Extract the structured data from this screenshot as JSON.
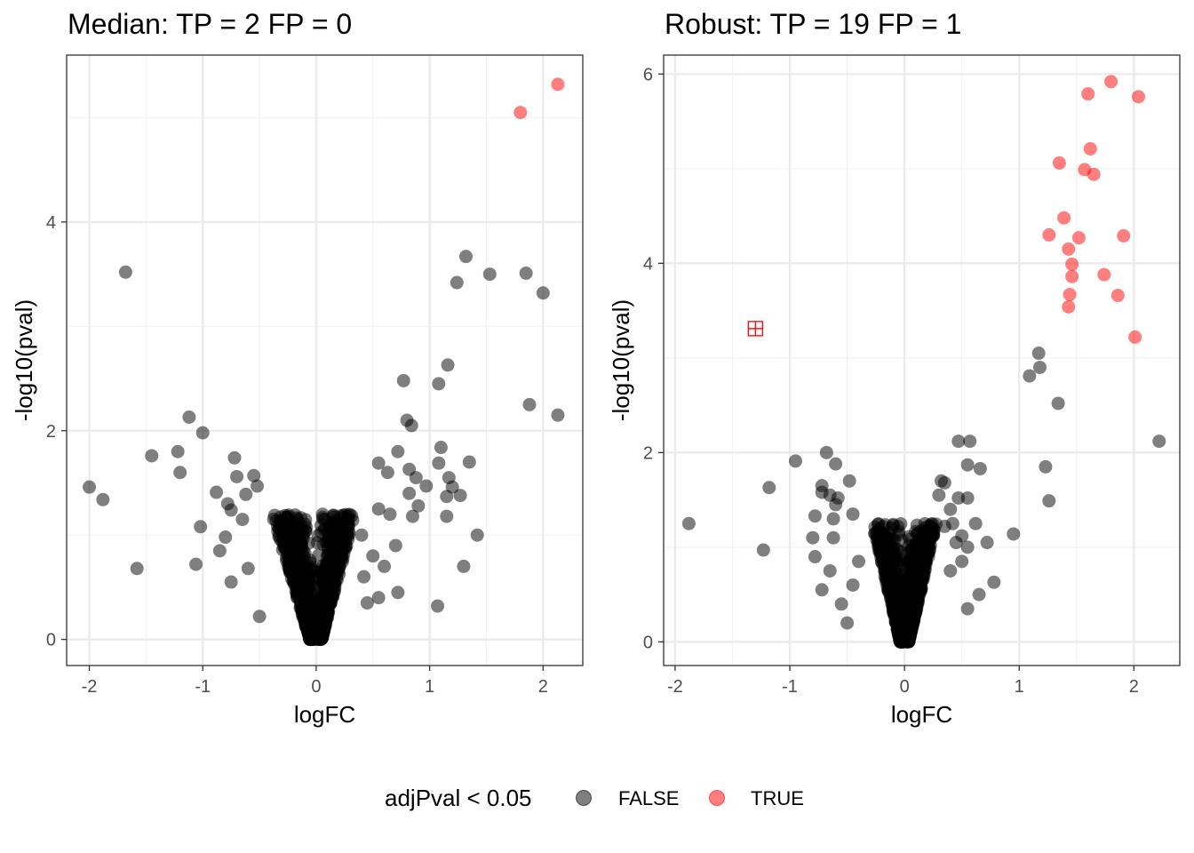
{
  "chart_data": [
    {
      "type": "scatter",
      "title": "Median: TP = 2 FP = 0",
      "xlabel": "logFC",
      "ylabel": "-log10(pval)",
      "xlim": [
        -2.2,
        2.35
      ],
      "ylim": [
        -0.25,
        5.6
      ],
      "xticks": [
        -2,
        -1,
        0,
        1,
        2
      ],
      "xtick_labels": [
        "-2",
        "-1",
        "0",
        "1",
        "2"
      ],
      "yticks": [
        0,
        2,
        4
      ],
      "ytick_labels": [
        "0",
        "2",
        "4"
      ],
      "grid": true,
      "cloud": {
        "scale_left": 0.16,
        "scale_right": 0.14,
        "max_y": 1.2,
        "count": 950,
        "seed": 7
      },
      "series": [
        {
          "name": "FALSE",
          "color": "#000000",
          "points": [
            [
              -1.68,
              3.52
            ],
            [
              -2.0,
              1.46
            ],
            [
              -1.88,
              1.34
            ],
            [
              -1.58,
              0.68
            ],
            [
              -1.45,
              1.76
            ],
            [
              -1.22,
              1.8
            ],
            [
              -1.2,
              1.6
            ],
            [
              -1.12,
              2.13
            ],
            [
              -1.0,
              1.98
            ],
            [
              -1.02,
              1.08
            ],
            [
              -1.06,
              0.72
            ],
            [
              -0.88,
              1.41
            ],
            [
              -0.72,
              1.74
            ],
            [
              -0.7,
              1.56
            ],
            [
              -0.55,
              1.57
            ],
            [
              -0.52,
              1.47
            ],
            [
              -0.62,
              1.39
            ],
            [
              -0.78,
              1.3
            ],
            [
              -0.75,
              1.24
            ],
            [
              -0.65,
              1.15
            ],
            [
              -0.8,
              0.98
            ],
            [
              -0.85,
              0.85
            ],
            [
              -0.6,
              0.68
            ],
            [
              -0.75,
              0.55
            ],
            [
              -0.5,
              0.22
            ],
            [
              1.32,
              3.67
            ],
            [
              1.53,
              3.5
            ],
            [
              1.85,
              3.51
            ],
            [
              1.24,
              3.42
            ],
            [
              2.0,
              3.32
            ],
            [
              1.16,
              2.63
            ],
            [
              0.77,
              2.48
            ],
            [
              1.08,
              2.45
            ],
            [
              1.88,
              2.25
            ],
            [
              2.13,
              2.15
            ],
            [
              0.8,
              2.1
            ],
            [
              0.84,
              2.05
            ],
            [
              1.1,
              1.84
            ],
            [
              1.35,
              1.7
            ],
            [
              0.72,
              1.8
            ],
            [
              1.08,
              1.69
            ],
            [
              1.17,
              1.55
            ],
            [
              0.82,
              1.63
            ],
            [
              0.88,
              1.55
            ],
            [
              0.55,
              1.69
            ],
            [
              0.97,
              1.47
            ],
            [
              1.2,
              1.46
            ],
            [
              1.15,
              1.37
            ],
            [
              1.27,
              1.38
            ],
            [
              0.63,
              1.6
            ],
            [
              0.82,
              1.4
            ],
            [
              0.9,
              1.28
            ],
            [
              1.15,
              1.18
            ],
            [
              0.85,
              1.18
            ],
            [
              1.42,
              1.0
            ],
            [
              1.3,
              0.7
            ],
            [
              1.07,
              0.32
            ],
            [
              0.65,
              1.2
            ],
            [
              0.7,
              0.9
            ],
            [
              0.6,
              0.7
            ],
            [
              0.72,
              0.45
            ],
            [
              0.55,
              0.4
            ],
            [
              0.45,
              0.35
            ],
            [
              0.55,
              1.25
            ],
            [
              0.4,
              1.0
            ],
            [
              0.5,
              0.8
            ],
            [
              0.42,
              0.6
            ]
          ]
        },
        {
          "name": "TRUE",
          "color": "#ff0000",
          "points": [
            [
              2.13,
              5.32
            ],
            [
              1.8,
              5.05
            ]
          ]
        }
      ]
    },
    {
      "type": "scatter",
      "title": "Robust: TP = 19 FP = 1",
      "xlabel": "logFC",
      "ylabel": "-log10(pval)",
      "xlim": [
        -2.1,
        2.4
      ],
      "ylim": [
        -0.25,
        6.2
      ],
      "xticks": [
        -2,
        -1,
        0,
        1,
        2
      ],
      "xtick_labels": [
        "-2",
        "-1",
        "0",
        "1",
        "2"
      ],
      "yticks": [
        0,
        2,
        4,
        6
      ],
      "ytick_labels": [
        "0",
        "2",
        "4",
        "6"
      ],
      "grid": true,
      "cloud": {
        "scale_left": 0.11,
        "scale_right": 0.11,
        "max_y": 1.25,
        "count": 950,
        "seed": 23
      },
      "series": [
        {
          "name": "FALSE",
          "color": "#000000",
          "points": [
            [
              -1.88,
              1.25
            ],
            [
              -1.23,
              0.97
            ],
            [
              -1.18,
              1.63
            ],
            [
              -0.95,
              1.91
            ],
            [
              -0.68,
              2.0
            ],
            [
              -0.6,
              1.88
            ],
            [
              -0.72,
              1.65
            ],
            [
              -0.72,
              1.58
            ],
            [
              -0.65,
              1.55
            ],
            [
              -0.58,
              1.52
            ],
            [
              -0.48,
              1.7
            ],
            [
              -0.6,
              1.45
            ],
            [
              -0.45,
              1.35
            ],
            [
              -0.62,
              1.3
            ],
            [
              -0.78,
              1.33
            ],
            [
              -0.8,
              1.1
            ],
            [
              -0.62,
              1.1
            ],
            [
              -0.78,
              0.9
            ],
            [
              -0.65,
              0.75
            ],
            [
              -0.72,
              0.55
            ],
            [
              -0.55,
              0.4
            ],
            [
              -0.5,
              0.2
            ],
            [
              -0.45,
              0.6
            ],
            [
              -0.4,
              0.85
            ],
            [
              1.17,
              3.05
            ],
            [
              1.18,
              2.9
            ],
            [
              1.09,
              2.81
            ],
            [
              1.34,
              2.52
            ],
            [
              2.22,
              2.12
            ],
            [
              0.47,
              2.12
            ],
            [
              0.57,
              2.12
            ],
            [
              0.32,
              1.7
            ],
            [
              0.35,
              1.68
            ],
            [
              0.55,
              1.87
            ],
            [
              0.66,
              1.83
            ],
            [
              1.23,
              1.85
            ],
            [
              0.3,
              1.55
            ],
            [
              0.47,
              1.52
            ],
            [
              0.55,
              1.52
            ],
            [
              1.26,
              1.49
            ],
            [
              0.4,
              1.4
            ],
            [
              0.62,
              1.25
            ],
            [
              0.95,
              1.14
            ],
            [
              0.5,
              1.12
            ],
            [
              0.72,
              1.05
            ],
            [
              0.45,
              1.05
            ],
            [
              0.55,
              1.0
            ],
            [
              0.78,
              0.63
            ],
            [
              0.65,
              0.5
            ],
            [
              0.55,
              0.35
            ],
            [
              0.4,
              0.75
            ],
            [
              0.5,
              0.85
            ],
            [
              0.42,
              1.25
            ],
            [
              0.35,
              1.22
            ]
          ]
        },
        {
          "name": "TRUE",
          "color": "#ff0000",
          "points": [
            [
              1.8,
              5.92
            ],
            [
              1.6,
              5.79
            ],
            [
              2.04,
              5.76
            ],
            [
              1.62,
              5.21
            ],
            [
              1.35,
              5.06
            ],
            [
              1.57,
              4.99
            ],
            [
              1.65,
              4.94
            ],
            [
              1.39,
              4.48
            ],
            [
              1.26,
              4.3
            ],
            [
              1.52,
              4.27
            ],
            [
              1.91,
              4.29
            ],
            [
              1.43,
              4.15
            ],
            [
              1.46,
              3.99
            ],
            [
              1.46,
              3.86
            ],
            [
              1.74,
              3.88
            ],
            [
              1.44,
              3.67
            ],
            [
              1.86,
              3.66
            ],
            [
              1.43,
              3.54
            ],
            [
              2.01,
              3.22
            ]
          ]
        }
      ],
      "markers": [
        {
          "shape": "square-cross",
          "color": "#ff0000",
          "x": -1.3,
          "y": 3.31
        }
      ]
    }
  ],
  "legend": {
    "title": "adjPval < 0.05",
    "items": [
      {
        "label": "FALSE",
        "color": "#000000"
      },
      {
        "label": "TRUE",
        "color": "#ff0000"
      }
    ]
  }
}
